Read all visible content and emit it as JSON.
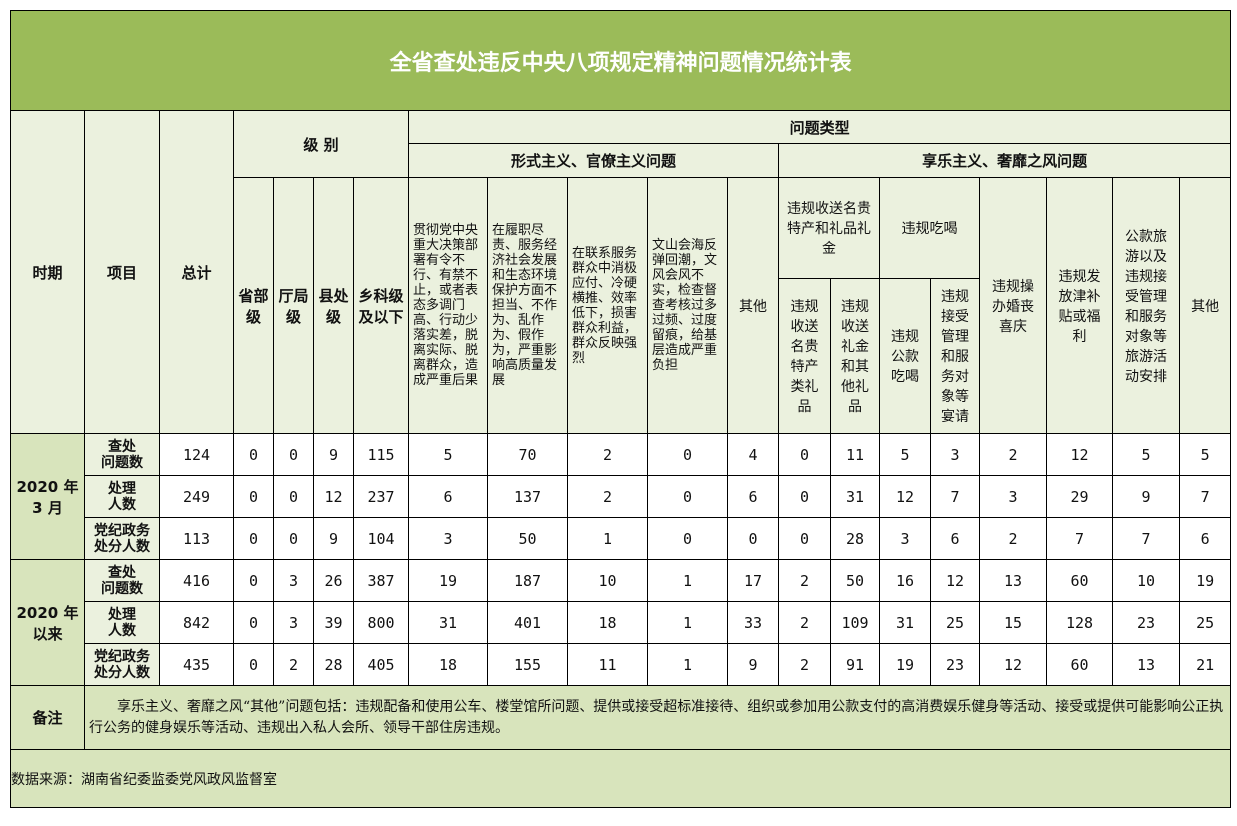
{
  "title": "全省查处违反中央八项规定精神问题情况统计表",
  "header": {
    "period": "时期",
    "item": "项目",
    "total": "总计",
    "level": "级 别",
    "problem_type": "问题类型",
    "levels": [
      "省部级",
      "厅局级",
      "县处级",
      "乡科级及以下"
    ],
    "formalism": "形式主义、官僚主义问题",
    "formalism_cols": [
      "贯彻党中央重大决策部署有令不行、有禁不止，或者表态多调门高、行动少落实差，脱离实际、脱离群众，造成严重后果",
      "在履职尽责、服务经济社会发展和生态环境保护方面不担当、不作为、乱作为、假作为，严重影响高质量发展",
      "在联系服务群众中消极应付、冷硬横推、效率低下，损害群众利益，群众反映强烈",
      "文山会海反弹回潮，文风会风不实，检查督查考核过多过频、过度留痕，给基层造成严重负担",
      "其他"
    ],
    "hedonism": "享乐主义、奢靡之风问题",
    "gifts": "违规收送名贵特产和礼品礼金",
    "gifts_sub": [
      "违规收送名贵特产类礼品",
      "违规收送礼金和其他礼品"
    ],
    "dining": "违规吃喝",
    "dining_sub": [
      "违规公款吃喝",
      "违规接受管理和服务对象等宴请"
    ],
    "hedonism_cols": [
      "违规操办婚丧喜庆",
      "违规发放津补贴或福利",
      "公款旅游以及违规接受管理和服务对象等旅游活动安排",
      "其他"
    ]
  },
  "periods": [
    {
      "label": "2020 年\n3 月",
      "rows": [
        {
          "item": "查处\n问题数",
          "values": [
            "124",
            "0",
            "0",
            "9",
            "115",
            "5",
            "70",
            "2",
            "0",
            "4",
            "0",
            "11",
            "5",
            "3",
            "2",
            "12",
            "5",
            "5"
          ]
        },
        {
          "item": "处理\n人数",
          "values": [
            "249",
            "0",
            "0",
            "12",
            "237",
            "6",
            "137",
            "2",
            "0",
            "6",
            "0",
            "31",
            "12",
            "7",
            "3",
            "29",
            "9",
            "7"
          ]
        },
        {
          "item": "党纪政务\n处分人数",
          "values": [
            "113",
            "0",
            "0",
            "9",
            "104",
            "3",
            "50",
            "1",
            "0",
            "0",
            "0",
            "28",
            "3",
            "6",
            "2",
            "7",
            "7",
            "6"
          ]
        }
      ]
    },
    {
      "label": "2020 年\n以来",
      "rows": [
        {
          "item": "查处\n问题数",
          "values": [
            "416",
            "0",
            "3",
            "26",
            "387",
            "19",
            "187",
            "10",
            "1",
            "17",
            "2",
            "50",
            "16",
            "12",
            "13",
            "60",
            "10",
            "19"
          ]
        },
        {
          "item": "处理\n人数",
          "values": [
            "842",
            "0",
            "3",
            "39",
            "800",
            "31",
            "401",
            "18",
            "1",
            "33",
            "2",
            "109",
            "31",
            "25",
            "15",
            "128",
            "23",
            "25"
          ]
        },
        {
          "item": "党纪政务\n处分人数",
          "values": [
            "435",
            "0",
            "2",
            "28",
            "405",
            "18",
            "155",
            "11",
            "1",
            "9",
            "2",
            "91",
            "19",
            "23",
            "12",
            "60",
            "13",
            "21"
          ]
        }
      ]
    }
  ],
  "note": {
    "label": "备注",
    "text": "享乐主义、奢靡之风“其他”问题包括：违规配备和使用公车、楼堂馆所问题、提供或接受超标准接待、组织或参加用公款支付的高消费娱乐健身等活动、接受或提供可能影响公正执行公务的健身娱乐等活动、违规出入私人会所、领导干部住房违规。"
  },
  "source": "数据来源：湖南省纪委监委党风政风监督室",
  "colors": {
    "title_bg": "#9bbb59",
    "header_bg": "#ebf1de",
    "note_bg": "#d8e4bc"
  }
}
